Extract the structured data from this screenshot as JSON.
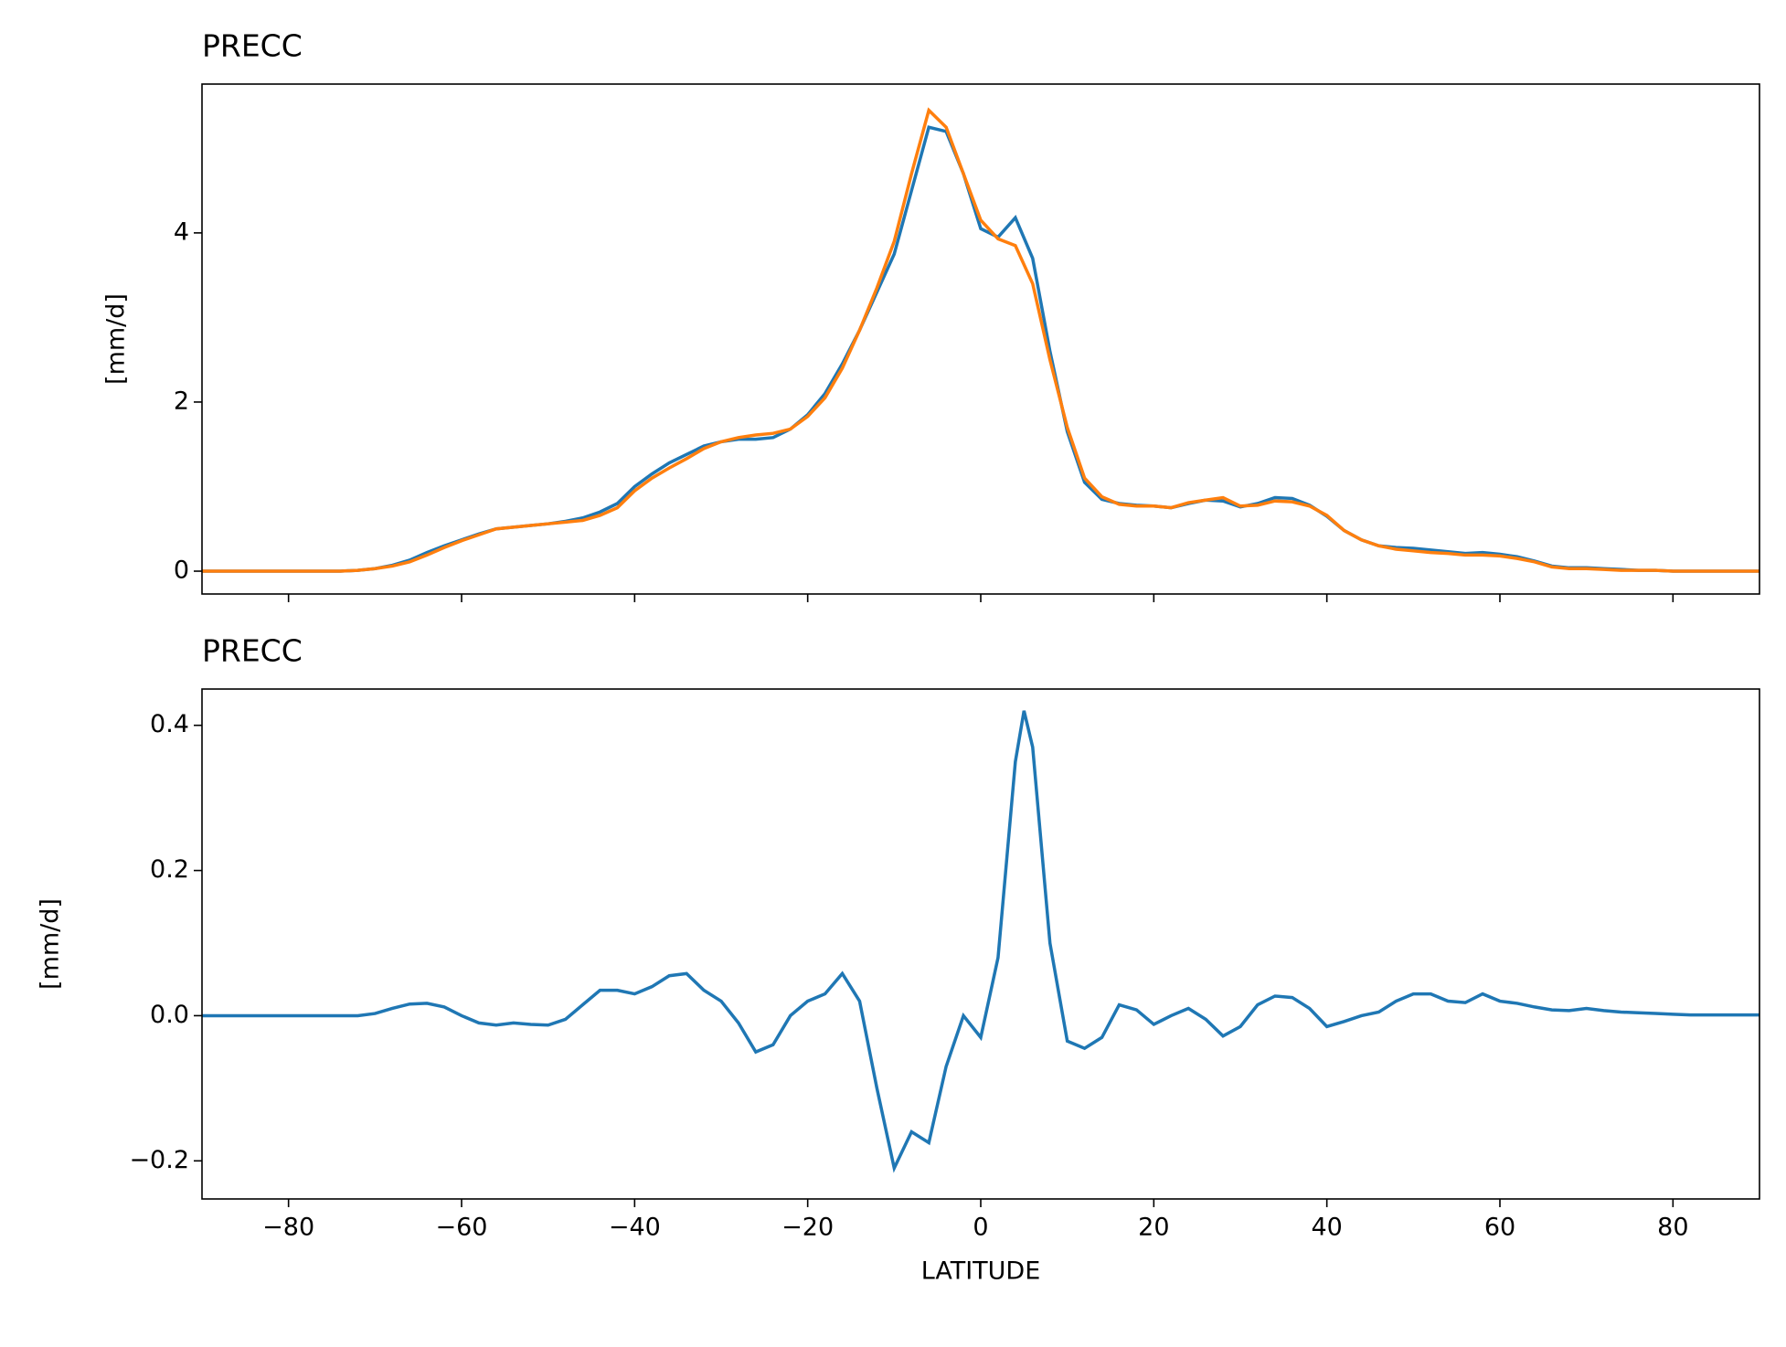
{
  "chart_data": [
    {
      "type": "line",
      "title": "PRECC",
      "ylabel": "[mm/d]",
      "x": [
        -90,
        -88,
        -86,
        -84,
        -82,
        -80,
        -78,
        -76,
        -74,
        -72,
        -70,
        -68,
        -66,
        -64,
        -62,
        -60,
        -58,
        -56,
        -54,
        -52,
        -50,
        -48,
        -46,
        -44,
        -42,
        -40,
        -38,
        -36,
        -34,
        -32,
        -30,
        -28,
        -26,
        -24,
        -22,
        -20,
        -18,
        -16,
        -14,
        -12,
        -10,
        -8,
        -6,
        -4,
        -2,
        0,
        2,
        4,
        6,
        8,
        10,
        12,
        14,
        16,
        18,
        20,
        22,
        24,
        26,
        28,
        30,
        32,
        34,
        36,
        38,
        40,
        42,
        44,
        46,
        48,
        50,
        52,
        54,
        56,
        58,
        60,
        62,
        64,
        66,
        68,
        70,
        72,
        74,
        76,
        78,
        80,
        82,
        84,
        86,
        88,
        90
      ],
      "series": [
        {
          "color": "#1f77b4",
          "values": [
            0,
            0,
            0,
            0,
            0,
            0,
            0,
            0,
            0,
            0.01,
            0.03,
            0.07,
            0.13,
            0.22,
            0.3,
            0.37,
            0.44,
            0.5,
            0.52,
            0.54,
            0.56,
            0.59,
            0.63,
            0.7,
            0.8,
            1.0,
            1.15,
            1.28,
            1.38,
            1.48,
            1.53,
            1.56,
            1.56,
            1.58,
            1.68,
            1.85,
            2.1,
            2.45,
            2.85,
            3.3,
            3.75,
            4.5,
            5.25,
            5.2,
            4.7,
            4.05,
            3.95,
            4.18,
            3.7,
            2.6,
            1.65,
            1.05,
            0.85,
            0.8,
            0.78,
            0.77,
            0.75,
            0.8,
            0.84,
            0.83,
            0.76,
            0.8,
            0.87,
            0.86,
            0.78,
            0.65,
            0.48,
            0.37,
            0.3,
            0.28,
            0.27,
            0.25,
            0.23,
            0.21,
            0.22,
            0.2,
            0.17,
            0.12,
            0.06,
            0.04,
            0.04,
            0.03,
            0.02,
            0.01,
            0.01,
            0,
            0,
            0,
            0,
            0,
            0
          ]
        },
        {
          "color": "#ff7f0e",
          "values": [
            0,
            0,
            0,
            0,
            0,
            0,
            0,
            0,
            0,
            0.01,
            0.03,
            0.06,
            0.11,
            0.19,
            0.28,
            0.36,
            0.43,
            0.5,
            0.52,
            0.54,
            0.56,
            0.58,
            0.6,
            0.66,
            0.75,
            0.95,
            1.1,
            1.22,
            1.33,
            1.45,
            1.53,
            1.58,
            1.61,
            1.63,
            1.68,
            1.83,
            2.05,
            2.4,
            2.85,
            3.35,
            3.9,
            4.7,
            5.45,
            5.25,
            4.7,
            4.15,
            3.93,
            3.85,
            3.4,
            2.5,
            1.7,
            1.1,
            0.88,
            0.79,
            0.77,
            0.77,
            0.75,
            0.81,
            0.84,
            0.87,
            0.77,
            0.78,
            0.83,
            0.82,
            0.77,
            0.66,
            0.48,
            0.37,
            0.3,
            0.26,
            0.24,
            0.22,
            0.21,
            0.19,
            0.19,
            0.18,
            0.15,
            0.11,
            0.05,
            0.03,
            0.03,
            0.02,
            0.01,
            0.01,
            0.01,
            0,
            0,
            0,
            0,
            0,
            0
          ]
        }
      ],
      "xlim": [
        -90,
        90
      ],
      "xticks": [
        -80,
        -60,
        -40,
        -20,
        0,
        20,
        40,
        60,
        80
      ],
      "ylim": [
        -0.27,
        5.76
      ],
      "yticks": [
        0,
        2,
        4
      ]
    },
    {
      "type": "line",
      "title": "PRECC",
      "ylabel": "[mm/d]",
      "xlabel": "LATITUDE",
      "x": [
        -90,
        -88,
        -86,
        -84,
        -82,
        -80,
        -78,
        -76,
        -74,
        -72,
        -70,
        -68,
        -66,
        -64,
        -62,
        -60,
        -58,
        -56,
        -54,
        -52,
        -50,
        -48,
        -46,
        -44,
        -42,
        -40,
        -38,
        -36,
        -34,
        -32,
        -30,
        -28,
        -26,
        -24,
        -22,
        -20,
        -18,
        -16,
        -14,
        -12,
        -10,
        -8,
        -6,
        -4,
        -2,
        0,
        2,
        4,
        5,
        6,
        8,
        10,
        12,
        14,
        16,
        18,
        20,
        22,
        24,
        26,
        28,
        30,
        32,
        34,
        36,
        38,
        40,
        42,
        44,
        46,
        48,
        50,
        52,
        54,
        56,
        58,
        60,
        62,
        64,
        66,
        68,
        70,
        72,
        74,
        76,
        78,
        80,
        82,
        84,
        86,
        88,
        90
      ],
      "series": [
        {
          "color": "#1f77b4",
          "values": [
            0,
            0,
            0,
            0,
            0,
            0,
            0,
            0,
            0,
            0,
            0.003,
            0.01,
            0.016,
            0.017,
            0.012,
            0,
            -0.01,
            -0.013,
            -0.01,
            -0.012,
            -0.013,
            -0.005,
            0.015,
            0.035,
            0.035,
            0.03,
            0.04,
            0.055,
            0.058,
            0.035,
            0.02,
            -0.01,
            -0.05,
            -0.04,
            0,
            0.02,
            0.03,
            0.058,
            0.02,
            -0.1,
            -0.21,
            -0.16,
            -0.175,
            -0.07,
            0,
            -0.03,
            0.08,
            0.35,
            0.42,
            0.37,
            0.1,
            -0.035,
            -0.045,
            -0.03,
            0.015,
            0.008,
            -0.012,
            0,
            0.01,
            -0.005,
            -0.028,
            -0.015,
            0.015,
            0.027,
            0.025,
            0.01,
            -0.015,
            -0.008,
            0,
            0.005,
            0.02,
            0.03,
            0.03,
            0.02,
            0.018,
            0.03,
            0.02,
            0.017,
            0.012,
            0.008,
            0.007,
            0.01,
            0.007,
            0.005,
            0.004,
            0.003,
            0.002,
            0.001,
            0.001,
            0.001,
            0.001,
            0.001
          ]
        }
      ],
      "xlim": [
        -90,
        90
      ],
      "xticks": [
        {
          "value": -80,
          "label": "−80"
        },
        {
          "value": -60,
          "label": "−60"
        },
        {
          "value": -40,
          "label": "−40"
        },
        {
          "value": -20,
          "label": "−20"
        },
        0,
        20,
        40,
        60,
        80
      ],
      "ylim": [
        -0.2525,
        0.45
      ],
      "yticks": [
        {
          "value": -0.2,
          "label": "−0.2"
        },
        {
          "value": 0,
          "label": "0.0"
        },
        0.2,
        0.4
      ]
    }
  ]
}
